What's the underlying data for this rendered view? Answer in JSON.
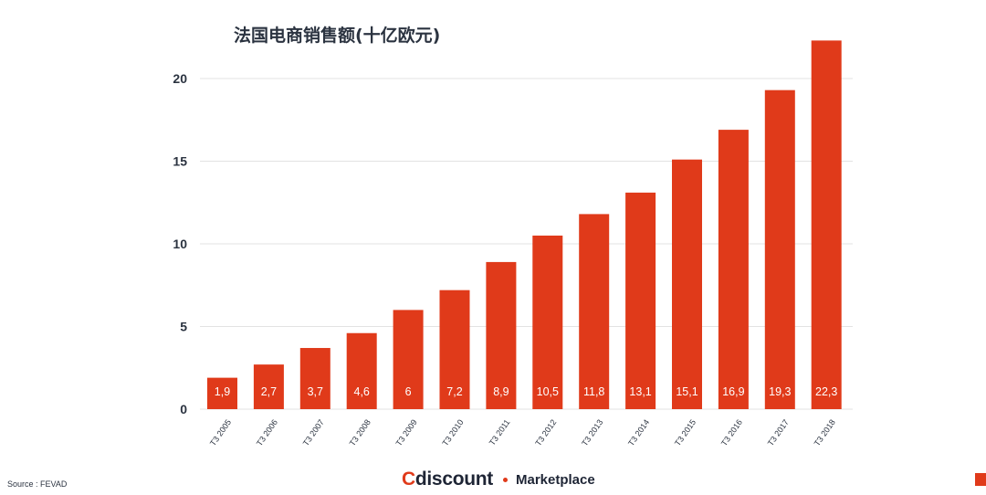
{
  "chart_data": {
    "type": "bar",
    "title": "法国电商销售额(十亿欧元)",
    "xlabel": "",
    "ylabel": "",
    "categories": [
      "T3 2005",
      "T3 2006",
      "T3 2007",
      "T3 2008",
      "T3 2009",
      "T3 2010",
      "T3 2011",
      "T3 2012",
      "T3 2013",
      "T3 2014",
      "T3 2015",
      "T3 2016",
      "T3 2017",
      "T3 2018"
    ],
    "values": [
      1.9,
      2.7,
      3.7,
      4.6,
      6,
      7.2,
      8.9,
      10.5,
      11.8,
      13.1,
      15.1,
      16.9,
      19.3,
      22.3
    ],
    "value_labels": [
      "1,9",
      "2,7",
      "3,7",
      "4,6",
      "6",
      "7,2",
      "8,9",
      "10,5",
      "11,8",
      "13,1",
      "15,1",
      "16,9",
      "19,3",
      "22,3"
    ],
    "yticks": [
      0,
      5,
      10,
      15,
      20
    ],
    "ylim": [
      0,
      23
    ],
    "grid": true,
    "legend": "none",
    "bar_color": "#e03a1a",
    "grid_color": "#e3e3e3"
  },
  "footer": {
    "source": "Source : FEVAD",
    "logo_c": "C",
    "logo_rest": "discount",
    "logo_sub": "Marketplace"
  },
  "colors": {
    "accent": "#e03a1a",
    "text_dark": "#2b3340"
  }
}
